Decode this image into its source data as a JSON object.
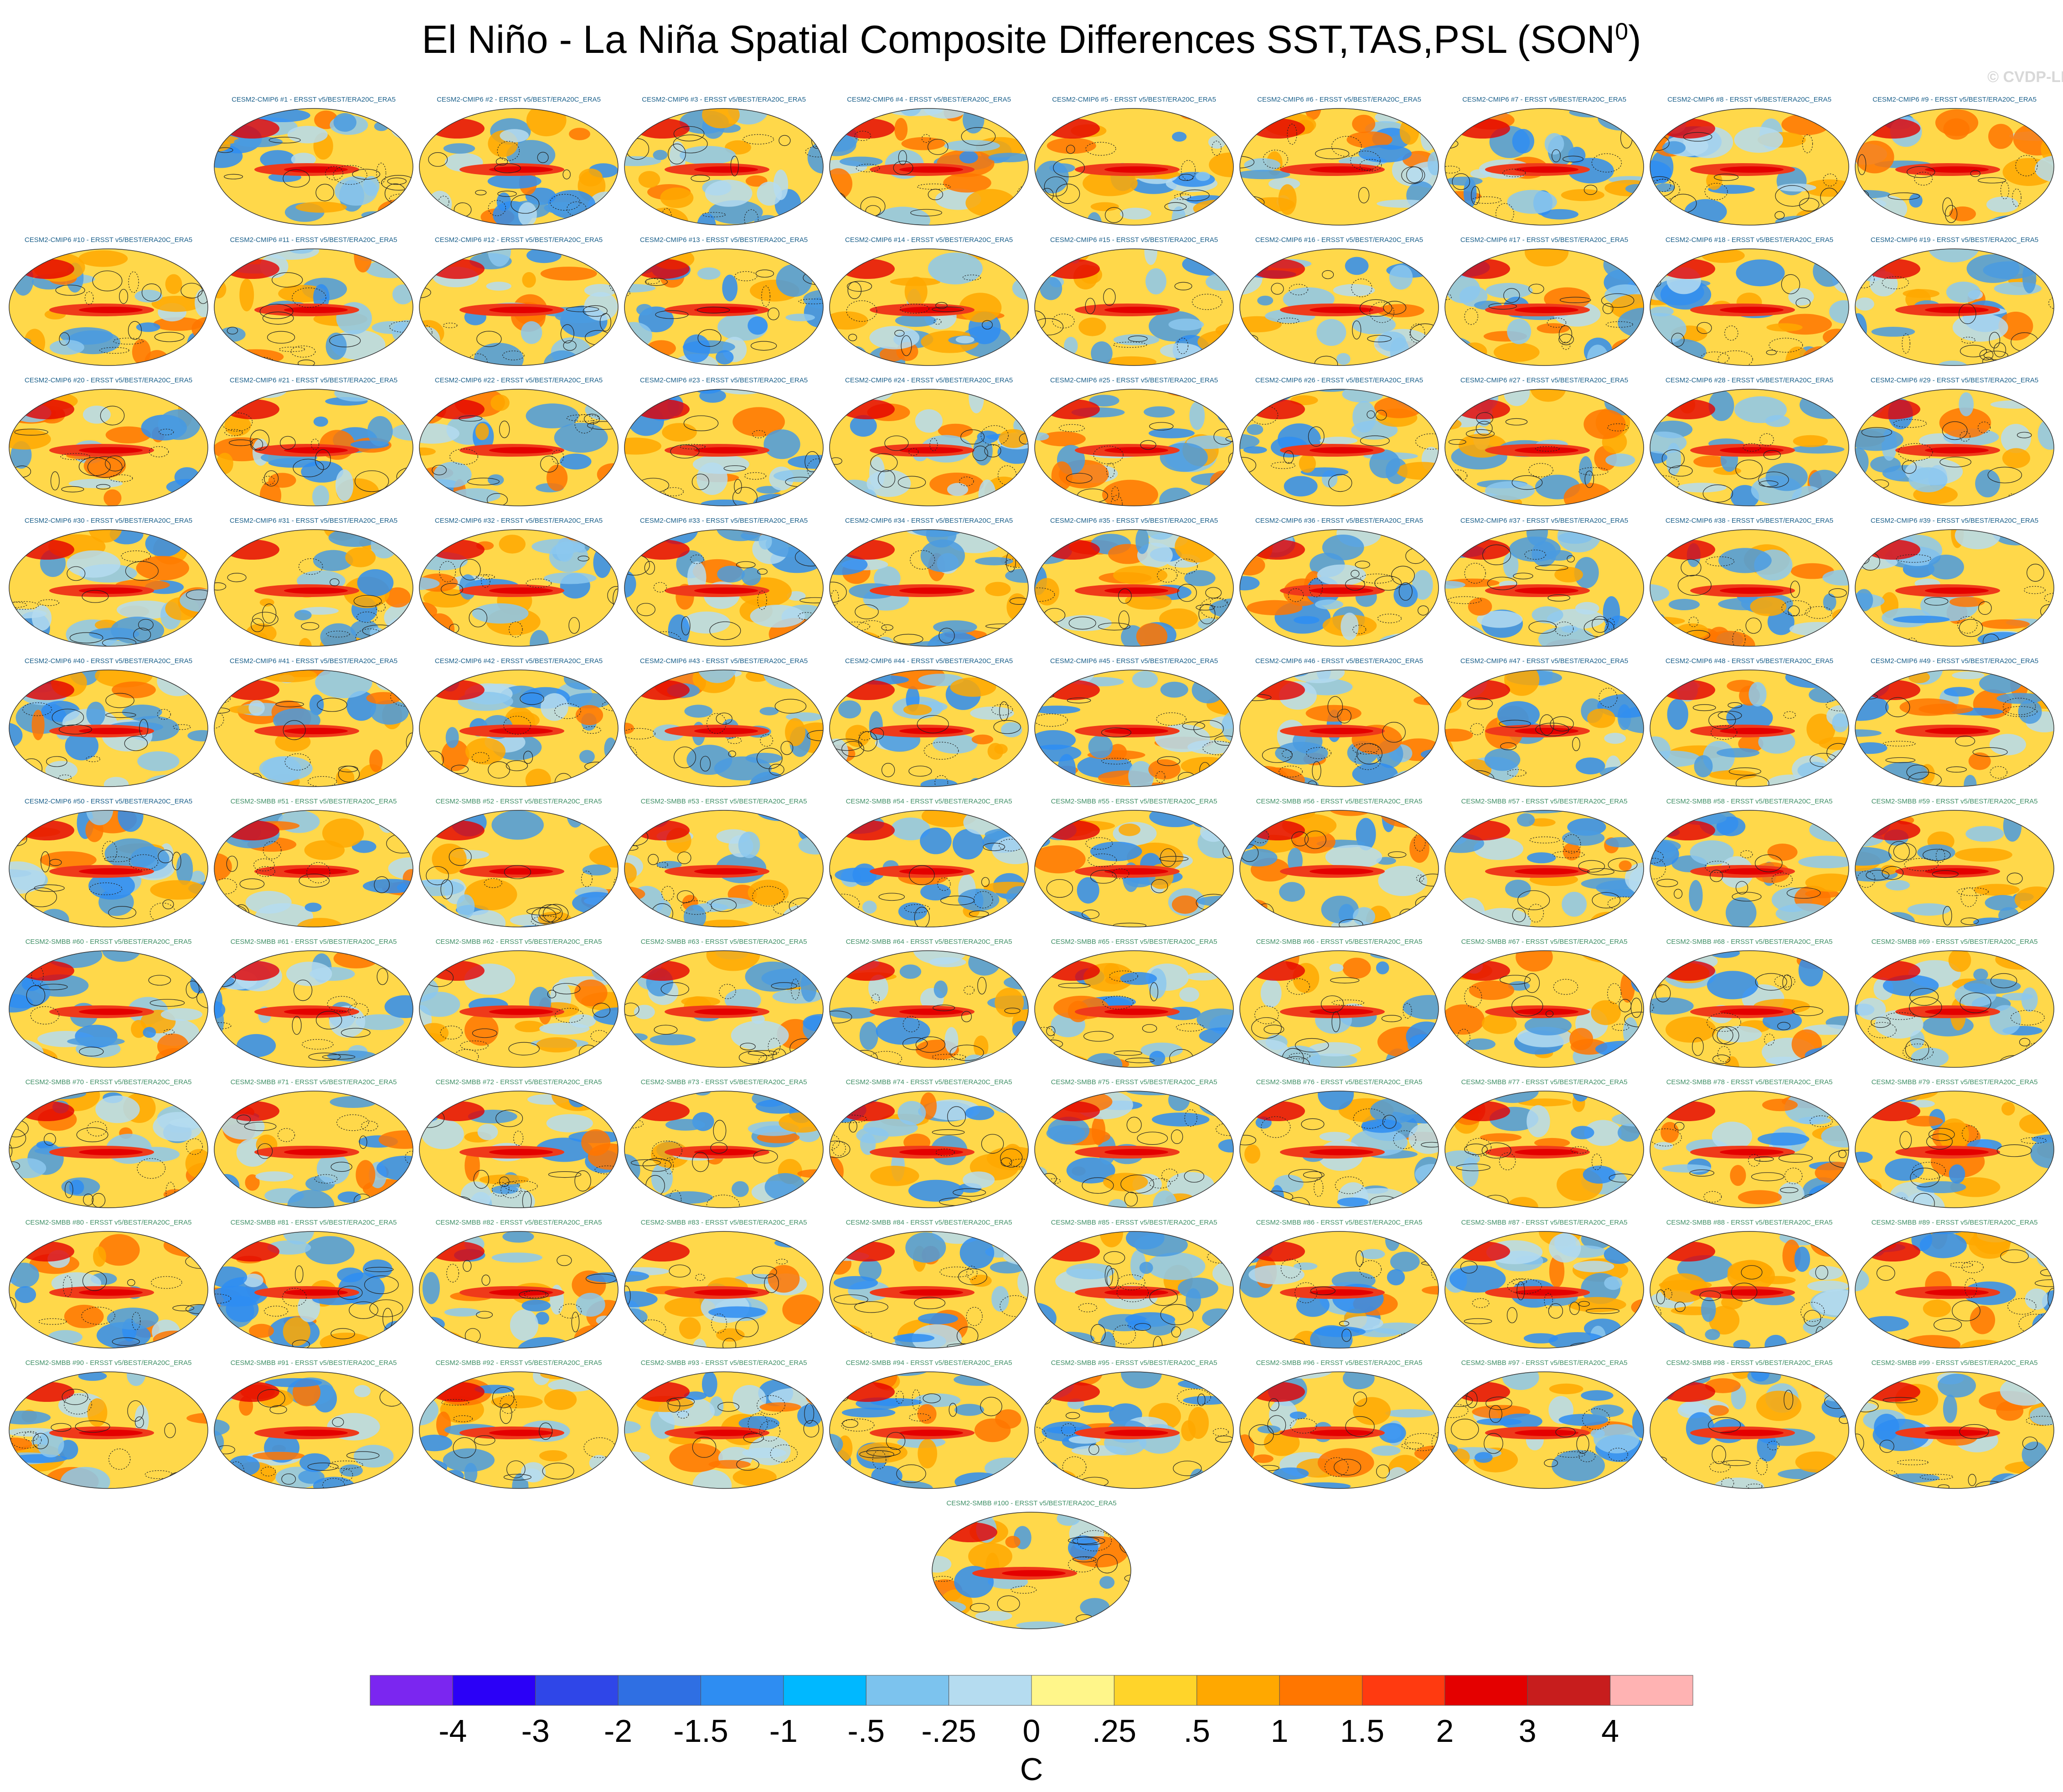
{
  "figure": {
    "title_main": "El Niño - La Niña Spatial Composite Differences SST,TAS,PSL (SON",
    "title_sup": "0",
    "title_close": ")",
    "watermark": "© CVDP-LE"
  },
  "panels": [
    {
      "label": "CESM2-CMIP6 #1 - ERSST v5/BEST/ERA20C_ERA5"
    },
    {
      "label": "CESM2-CMIP6 #2 - ERSST v5/BEST/ERA20C_ERA5"
    },
    {
      "label": "CESM2-CMIP6 #3 - ERSST v5/BEST/ERA20C_ERA5"
    },
    {
      "label": "CESM2-CMIP6 #4 - ERSST v5/BEST/ERA20C_ERA5"
    },
    {
      "label": "CESM2-CMIP6 #5 - ERSST v5/BEST/ERA20C_ERA5"
    },
    {
      "label": "CESM2-CMIP6 #6 - ERSST v5/BEST/ERA20C_ERA5"
    },
    {
      "label": "CESM2-CMIP6 #7 - ERSST v5/BEST/ERA20C_ERA5"
    },
    {
      "label": "CESM2-CMIP6 #8 - ERSST v5/BEST/ERA20C_ERA5"
    },
    {
      "label": "CESM2-CMIP6 #9 - ERSST v5/BEST/ERA20C_ERA5"
    },
    {
      "label": "CESM2-CMIP6 #10 - ERSST v5/BEST/ERA20C_ERA5"
    },
    {
      "label": "CESM2-CMIP6 #11 - ERSST v5/BEST/ERA20C_ERA5"
    },
    {
      "label": "CESM2-CMIP6 #12 - ERSST v5/BEST/ERA20C_ERA5"
    },
    {
      "label": "CESM2-CMIP6 #13 - ERSST v5/BEST/ERA20C_ERA5"
    },
    {
      "label": "CESM2-CMIP6 #14 - ERSST v5/BEST/ERA20C_ERA5"
    },
    {
      "label": "CESM2-CMIP6 #15 - ERSST v5/BEST/ERA20C_ERA5"
    },
    {
      "label": "CESM2-CMIP6 #16 - ERSST v5/BEST/ERA20C_ERA5"
    },
    {
      "label": "CESM2-CMIP6 #17 - ERSST v5/BEST/ERA20C_ERA5"
    },
    {
      "label": "CESM2-CMIP6 #18 - ERSST v5/BEST/ERA20C_ERA5"
    },
    {
      "label": "CESM2-CMIP6 #19 - ERSST v5/BEST/ERA20C_ERA5"
    },
    {
      "label": "CESM2-CMIP6 #20 - ERSST v5/BEST/ERA20C_ERA5"
    },
    {
      "label": "CESM2-CMIP6 #21 - ERSST v5/BEST/ERA20C_ERA5"
    },
    {
      "label": "CESM2-CMIP6 #22 - ERSST v5/BEST/ERA20C_ERA5"
    },
    {
      "label": "CESM2-CMIP6 #23 - ERSST v5/BEST/ERA20C_ERA5"
    },
    {
      "label": "CESM2-CMIP6 #24 - ERSST v5/BEST/ERA20C_ERA5"
    },
    {
      "label": "CESM2-CMIP6 #25 - ERSST v5/BEST/ERA20C_ERA5"
    },
    {
      "label": "CESM2-CMIP6 #26 - ERSST v5/BEST/ERA20C_ERA5"
    },
    {
      "label": "CESM2-CMIP6 #27 - ERSST v5/BEST/ERA20C_ERA5"
    },
    {
      "label": "CESM2-CMIP6 #28 - ERSST v5/BEST/ERA20C_ERA5"
    },
    {
      "label": "CESM2-CMIP6 #29 - ERSST v5/BEST/ERA20C_ERA5"
    },
    {
      "label": "CESM2-CMIP6 #30 - ERSST v5/BEST/ERA20C_ERA5"
    },
    {
      "label": "CESM2-CMIP6 #31 - ERSST v5/BEST/ERA20C_ERA5"
    },
    {
      "label": "CESM2-CMIP6 #32 - ERSST v5/BEST/ERA20C_ERA5"
    },
    {
      "label": "CESM2-CMIP6 #33 - ERSST v5/BEST/ERA20C_ERA5"
    },
    {
      "label": "CESM2-CMIP6 #34 - ERSST v5/BEST/ERA20C_ERA5"
    },
    {
      "label": "CESM2-CMIP6 #35 - ERSST v5/BEST/ERA20C_ERA5"
    },
    {
      "label": "CESM2-CMIP6 #36 - ERSST v5/BEST/ERA20C_ERA5"
    },
    {
      "label": "CESM2-CMIP6 #37 - ERSST v5/BEST/ERA20C_ERA5"
    },
    {
      "label": "CESM2-CMIP6 #38 - ERSST v5/BEST/ERA20C_ERA5"
    },
    {
      "label": "CESM2-CMIP6 #39 - ERSST v5/BEST/ERA20C_ERA5"
    },
    {
      "label": "CESM2-CMIP6 #40 - ERSST v5/BEST/ERA20C_ERA5"
    },
    {
      "label": "CESM2-CMIP6 #41 - ERSST v5/BEST/ERA20C_ERA5"
    },
    {
      "label": "CESM2-CMIP6 #42 - ERSST v5/BEST/ERA20C_ERA5"
    },
    {
      "label": "CESM2-CMIP6 #43 - ERSST v5/BEST/ERA20C_ERA5"
    },
    {
      "label": "CESM2-CMIP6 #44 - ERSST v5/BEST/ERA20C_ERA5"
    },
    {
      "label": "CESM2-CMIP6 #45 - ERSST v5/BEST/ERA20C_ERA5"
    },
    {
      "label": "CESM2-CMIP6 #46 - ERSST v5/BEST/ERA20C_ERA5"
    },
    {
      "label": "CESM2-CMIP6 #47 - ERSST v5/BEST/ERA20C_ERA5"
    },
    {
      "label": "CESM2-CMIP6 #48 - ERSST v5/BEST/ERA20C_ERA5"
    },
    {
      "label": "CESM2-CMIP6 #49 - ERSST v5/BEST/ERA20C_ERA5"
    },
    {
      "label": "CESM2-CMIP6 #50 - ERSST v5/BEST/ERA20C_ERA5"
    },
    {
      "label": "CESM2-SMBB #51 - ERSST v5/BEST/ERA20C_ERA5"
    },
    {
      "label": "CESM2-SMBB #52 - ERSST v5/BEST/ERA20C_ERA5"
    },
    {
      "label": "CESM2-SMBB #53 - ERSST v5/BEST/ERA20C_ERA5"
    },
    {
      "label": "CESM2-SMBB #54 - ERSST v5/BEST/ERA20C_ERA5"
    },
    {
      "label": "CESM2-SMBB #55 - ERSST v5/BEST/ERA20C_ERA5"
    },
    {
      "label": "CESM2-SMBB #56 - ERSST v5/BEST/ERA20C_ERA5"
    },
    {
      "label": "CESM2-SMBB #57 - ERSST v5/BEST/ERA20C_ERA5"
    },
    {
      "label": "CESM2-SMBB #58 - ERSST v5/BEST/ERA20C_ERA5"
    },
    {
      "label": "CESM2-SMBB #59 - ERSST v5/BEST/ERA20C_ERA5"
    },
    {
      "label": "CESM2-SMBB #60 - ERSST v5/BEST/ERA20C_ERA5"
    },
    {
      "label": "CESM2-SMBB #61 - ERSST v5/BEST/ERA20C_ERA5"
    },
    {
      "label": "CESM2-SMBB #62 - ERSST v5/BEST/ERA20C_ERA5"
    },
    {
      "label": "CESM2-SMBB #63 - ERSST v5/BEST/ERA20C_ERA5"
    },
    {
      "label": "CESM2-SMBB #64 - ERSST v5/BEST/ERA20C_ERA5"
    },
    {
      "label": "CESM2-SMBB #65 - ERSST v5/BEST/ERA20C_ERA5"
    },
    {
      "label": "CESM2-SMBB #66 - ERSST v5/BEST/ERA20C_ERA5"
    },
    {
      "label": "CESM2-SMBB #67 - ERSST v5/BEST/ERA20C_ERA5"
    },
    {
      "label": "CESM2-SMBB #68 - ERSST v5/BEST/ERA20C_ERA5"
    },
    {
      "label": "CESM2-SMBB #69 - ERSST v5/BEST/ERA20C_ERA5"
    },
    {
      "label": "CESM2-SMBB #70 - ERSST v5/BEST/ERA20C_ERA5"
    },
    {
      "label": "CESM2-SMBB #71 - ERSST v5/BEST/ERA20C_ERA5"
    },
    {
      "label": "CESM2-SMBB #72 - ERSST v5/BEST/ERA20C_ERA5"
    },
    {
      "label": "CESM2-SMBB #73 - ERSST v5/BEST/ERA20C_ERA5"
    },
    {
      "label": "CESM2-SMBB #74 - ERSST v5/BEST/ERA20C_ERA5"
    },
    {
      "label": "CESM2-SMBB #75 - ERSST v5/BEST/ERA20C_ERA5"
    },
    {
      "label": "CESM2-SMBB #76 - ERSST v5/BEST/ERA20C_ERA5"
    },
    {
      "label": "CESM2-SMBB #77 - ERSST v5/BEST/ERA20C_ERA5"
    },
    {
      "label": "CESM2-SMBB #78 - ERSST v5/BEST/ERA20C_ERA5"
    },
    {
      "label": "CESM2-SMBB #79 - ERSST v5/BEST/ERA20C_ERA5"
    },
    {
      "label": "CESM2-SMBB #80 - ERSST v5/BEST/ERA20C_ERA5"
    },
    {
      "label": "CESM2-SMBB #81 - ERSST v5/BEST/ERA20C_ERA5"
    },
    {
      "label": "CESM2-SMBB #82 - ERSST v5/BEST/ERA20C_ERA5"
    },
    {
      "label": "CESM2-SMBB #83 - ERSST v5/BEST/ERA20C_ERA5"
    },
    {
      "label": "CESM2-SMBB #84 - ERSST v5/BEST/ERA20C_ERA5"
    },
    {
      "label": "CESM2-SMBB #85 - ERSST v5/BEST/ERA20C_ERA5"
    },
    {
      "label": "CESM2-SMBB #86 - ERSST v5/BEST/ERA20C_ERA5"
    },
    {
      "label": "CESM2-SMBB #87 - ERSST v5/BEST/ERA20C_ERA5"
    },
    {
      "label": "CESM2-SMBB #88 - ERSST v5/BEST/ERA20C_ERA5"
    },
    {
      "label": "CESM2-SMBB #89 - ERSST v5/BEST/ERA20C_ERA5"
    },
    {
      "label": "CESM2-SMBB #90 - ERSST v5/BEST/ERA20C_ERA5"
    },
    {
      "label": "CESM2-SMBB #91 - ERSST v5/BEST/ERA20C_ERA5"
    },
    {
      "label": "CESM2-SMBB #92 - ERSST v5/BEST/ERA20C_ERA5"
    },
    {
      "label": "CESM2-SMBB #93 - ERSST v5/BEST/ERA20C_ERA5"
    },
    {
      "label": "CESM2-SMBB #94 - ERSST v5/BEST/ERA20C_ERA5"
    },
    {
      "label": "CESM2-SMBB #95 - ERSST v5/BEST/ERA20C_ERA5"
    },
    {
      "label": "CESM2-SMBB #96 - ERSST v5/BEST/ERA20C_ERA5"
    },
    {
      "label": "CESM2-SMBB #97 - ERSST v5/BEST/ERA20C_ERA5"
    },
    {
      "label": "CESM2-SMBB #98 - ERSST v5/BEST/ERA20C_ERA5"
    },
    {
      "label": "CESM2-SMBB #99 - ERSST v5/BEST/ERA20C_ERA5"
    },
    {
      "label": "CESM2-SMBB #100 - ERSST v5/BEST/ERA20C_ERA5"
    }
  ],
  "panel_style": {
    "cmip6_label_color": "#1a5f8a",
    "smbb_label_color": "#3f8f66",
    "map_background": "#ffd84a",
    "warm_tongue_color": "#ef3a1a",
    "cold_patch_color": "#4a9be0",
    "contour_color": "#222222"
  },
  "chart_data": {
    "type": "heatmap",
    "title": "El Niño - La Niña Spatial Composite Differences SST,TAS,PSL (SON0)",
    "colorbar": {
      "units": "C",
      "tick_labels": [
        "-4",
        "-3",
        "-2",
        "-1.5",
        "-1",
        "-.5",
        "-.25",
        "0",
        ".25",
        ".5",
        "1",
        "1.5",
        "2",
        "3",
        "4"
      ],
      "bin_colors": [
        "#7b26f0",
        "#2b00f7",
        "#2f46e8",
        "#2f6fe3",
        "#2e8df2",
        "#00b8ff",
        "#7cc3ee",
        "#b5dcf0",
        "#fff68a",
        "#ffd42a",
        "#ffa800",
        "#ff7600",
        "#ff3a10",
        "#e40000",
        "#c71d1d",
        "#ffb3b3"
      ]
    }
  }
}
